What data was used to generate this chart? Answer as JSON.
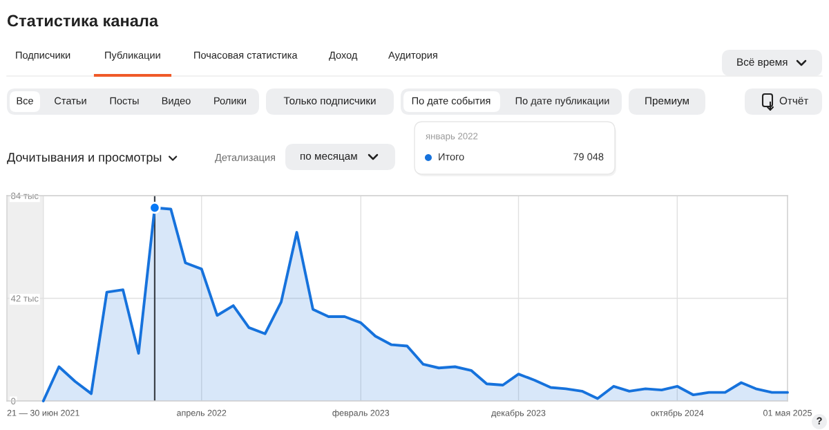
{
  "chart_data": {
    "type": "area",
    "title": "Статистика канала",
    "subtitle": "Дочитывания и просмотры",
    "x": [
      "2021-06",
      "2021-07",
      "2021-08",
      "2021-09",
      "2021-10",
      "2021-11",
      "2021-12",
      "2022-01",
      "2022-02",
      "2022-03",
      "2022-04",
      "2022-05",
      "2022-06",
      "2022-07",
      "2022-08",
      "2022-09",
      "2022-10",
      "2022-11",
      "2022-12",
      "2023-01",
      "2023-02",
      "2023-03",
      "2023-04",
      "2023-05",
      "2023-06",
      "2023-07",
      "2023-08",
      "2023-09",
      "2023-10",
      "2023-11",
      "2023-12",
      "2024-01",
      "2024-02",
      "2024-03",
      "2024-04",
      "2024-05",
      "2024-06",
      "2024-07",
      "2024-08",
      "2024-09",
      "2024-10",
      "2024-11",
      "2024-12",
      "2025-01",
      "2025-02",
      "2025-03",
      "2025-04",
      "2025-05"
    ],
    "series": [
      {
        "name": "Итого",
        "color": "#1672dc",
        "values": [
          0,
          14,
          8,
          3,
          44.5,
          45.5,
          19.5,
          79.048,
          78.5,
          56.5,
          54,
          35,
          39,
          30,
          27.5,
          40.5,
          69,
          37.5,
          34.5,
          34.5,
          32,
          26.5,
          23,
          22.5,
          15,
          13.5,
          14,
          12.5,
          7,
          6.5,
          11,
          8.5,
          5.5,
          5,
          4,
          1,
          6,
          4,
          5,
          4.5,
          6,
          2.5,
          3.5,
          3.5,
          7.5,
          5,
          3.5,
          3.5
        ]
      },
      {
        "type": "scatter",
        "x": [
          "2022-01"
        ],
        "values": [
          79.048
        ],
        "color": "#0879f6",
        "marker": "circle"
      }
    ],
    "xlim": [
      "2021-03-23",
      "2025-05"
    ],
    "ylim": [
      0,
      84
    ],
    "xticks": [
      {
        "value": "2021-06",
        "label": "21 — 30 июн 2021"
      },
      {
        "value": "2022-04",
        "label": "апрель 2022"
      },
      {
        "value": "2023-02",
        "label": "февраль 2023"
      },
      {
        "value": "2023-12",
        "label": "декабрь 2023"
      },
      {
        "value": "2024-10",
        "label": "октябрь 2024"
      },
      {
        "value": "2025-05",
        "label": "01 мая 2025"
      }
    ],
    "yticks": [
      0,
      {
        "value": 42,
        "label": "42 тыс"
      },
      {
        "value": 84,
        "label": "84 тыс"
      }
    ],
    "grid": true,
    "legend": "top",
    "ref_lines": [
      {
        "axis": "x",
        "value": "2022-01",
        "color": "#3b4149"
      }
    ],
    "bands": [
      {
        "axis": "x",
        "from": "2021-03-23",
        "to": "2021-06",
        "color": "#efefef"
      }
    ],
    "annotations": [
      "Подписчики",
      "Публикации",
      "Почасовая статистика",
      "Доход",
      "Аудитория",
      "Всё время",
      "Все",
      "Статьи",
      "Посты",
      "Видео",
      "Ролики",
      "Только подписчики",
      "По дате события",
      "По дате публикации",
      "Премиум",
      "Отчёт",
      "Детализация",
      "по месяцам",
      "январь 2022",
      "79 048",
      "?"
    ]
  }
}
